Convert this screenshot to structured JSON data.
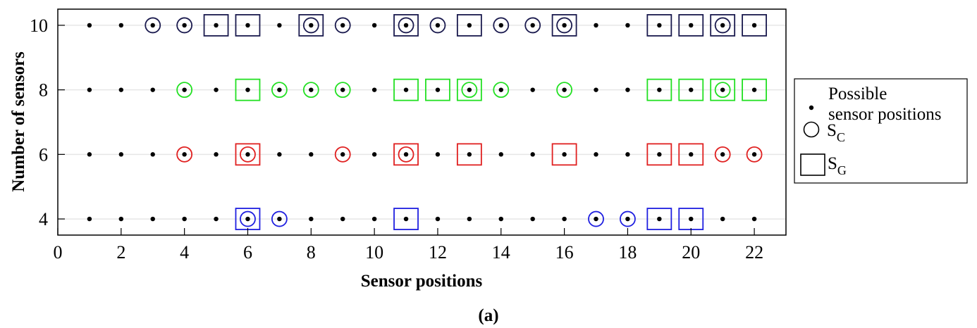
{
  "chart_data": {
    "type": "scatter",
    "xlabel": "Sensor positions",
    "ylabel": "Number of sensors",
    "caption": "(a)",
    "xlim": [
      0,
      23
    ],
    "ylim": [
      3.5,
      10.5
    ],
    "xticks": [
      "0",
      "2",
      "4",
      "6",
      "8",
      "10",
      "12",
      "14",
      "16",
      "18",
      "20",
      "22"
    ],
    "yticks": [
      "4",
      "6",
      "8",
      "10"
    ],
    "grid": "horizontal",
    "legend_position": "outside-right",
    "legend": {
      "possible": [
        "Possible",
        "sensor positions"
      ],
      "sc": {
        "main": "S",
        "sub": "C"
      },
      "sg": {
        "main": "S",
        "sub": "G"
      }
    },
    "possible_positions": [
      1,
      2,
      3,
      4,
      5,
      6,
      7,
      8,
      9,
      10,
      11,
      12,
      13,
      14,
      15,
      16,
      17,
      18,
      19,
      20,
      21,
      22
    ],
    "series": [
      {
        "sensors": 10,
        "color": "#1a1a4e",
        "sc": [
          3,
          4,
          8,
          9,
          11,
          12,
          14,
          15,
          16,
          21
        ],
        "sg": [
          5,
          6,
          8,
          11,
          13,
          16,
          19,
          20,
          21,
          22
        ]
      },
      {
        "sensors": 8,
        "color": "#22e022",
        "sc": [
          4,
          7,
          8,
          9,
          13,
          14,
          16,
          21
        ],
        "sg": [
          6,
          11,
          12,
          13,
          19,
          20,
          21,
          22
        ]
      },
      {
        "sensors": 6,
        "color": "#e02020",
        "sc": [
          4,
          6,
          9,
          11,
          21,
          22
        ],
        "sg": [
          6,
          11,
          13,
          16,
          19,
          20
        ]
      },
      {
        "sensors": 4,
        "color": "#1f1fe0",
        "sc": [
          6,
          7,
          17,
          18
        ],
        "sg": [
          6,
          11,
          19,
          20
        ]
      }
    ],
    "dot_color": "#000000",
    "frame_color": "#000000",
    "grid_color": "#e6e6e6"
  }
}
